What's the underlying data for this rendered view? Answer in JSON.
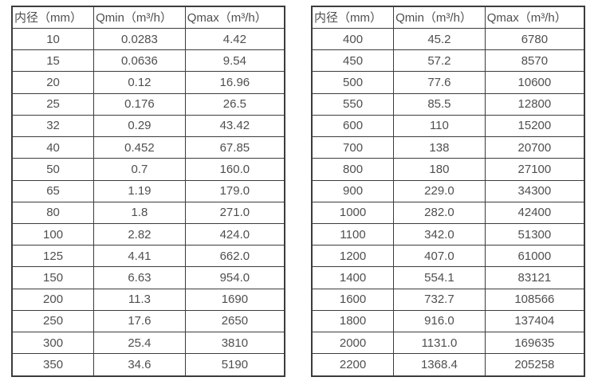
{
  "style": {
    "border_color": "#3c3c3c",
    "text_color": "#4f4f4f",
    "background_color": "#ffffff"
  },
  "tables": [
    {
      "id": "flow-range-table-left",
      "headers": [
        "内径（mm）",
        "Qmin（m³/h）",
        "Qmax（m³/h）"
      ],
      "rows": [
        [
          "10",
          "0.0283",
          "4.42"
        ],
        [
          "15",
          "0.0636",
          "9.54"
        ],
        [
          "20",
          "0.12",
          "16.96"
        ],
        [
          "25",
          "0.176",
          "26.5"
        ],
        [
          "32",
          "0.29",
          "43.42"
        ],
        [
          "40",
          "0.452",
          "67.85"
        ],
        [
          "50",
          "0.7",
          "160.0"
        ],
        [
          "65",
          "1.19",
          "179.0"
        ],
        [
          "80",
          "1.8",
          "271.0"
        ],
        [
          "100",
          "2.82",
          "424.0"
        ],
        [
          "125",
          "4.41",
          "662.0"
        ],
        [
          "150",
          "6.63",
          "954.0"
        ],
        [
          "200",
          "11.3",
          "1690"
        ],
        [
          "250",
          "17.6",
          "2650"
        ],
        [
          "300",
          "25.4",
          "3810"
        ],
        [
          "350",
          "34.6",
          "5190"
        ]
      ]
    },
    {
      "id": "flow-range-table-right",
      "headers": [
        "内径（mm）",
        "Qmin（m³/h）",
        "Qmax（m³/h）"
      ],
      "rows": [
        [
          "400",
          "45.2",
          "6780"
        ],
        [
          "450",
          "57.2",
          "8570"
        ],
        [
          "500",
          "77.6",
          "10600"
        ],
        [
          "550",
          "85.5",
          "12800"
        ],
        [
          "600",
          "110",
          "15200"
        ],
        [
          "700",
          "138",
          "20700"
        ],
        [
          "800",
          "180",
          "27100"
        ],
        [
          "900",
          "229.0",
          "34300"
        ],
        [
          "1000",
          "282.0",
          "42400"
        ],
        [
          "1100",
          "342.0",
          "51300"
        ],
        [
          "1200",
          "407.0",
          "61000"
        ],
        [
          "1400",
          "554.1",
          "83121"
        ],
        [
          "1600",
          "732.7",
          "108566"
        ],
        [
          "1800",
          "916.0",
          "137404"
        ],
        [
          "2000",
          "1131.0",
          "169635"
        ],
        [
          "2200",
          "1368.4",
          "205258"
        ]
      ]
    }
  ]
}
